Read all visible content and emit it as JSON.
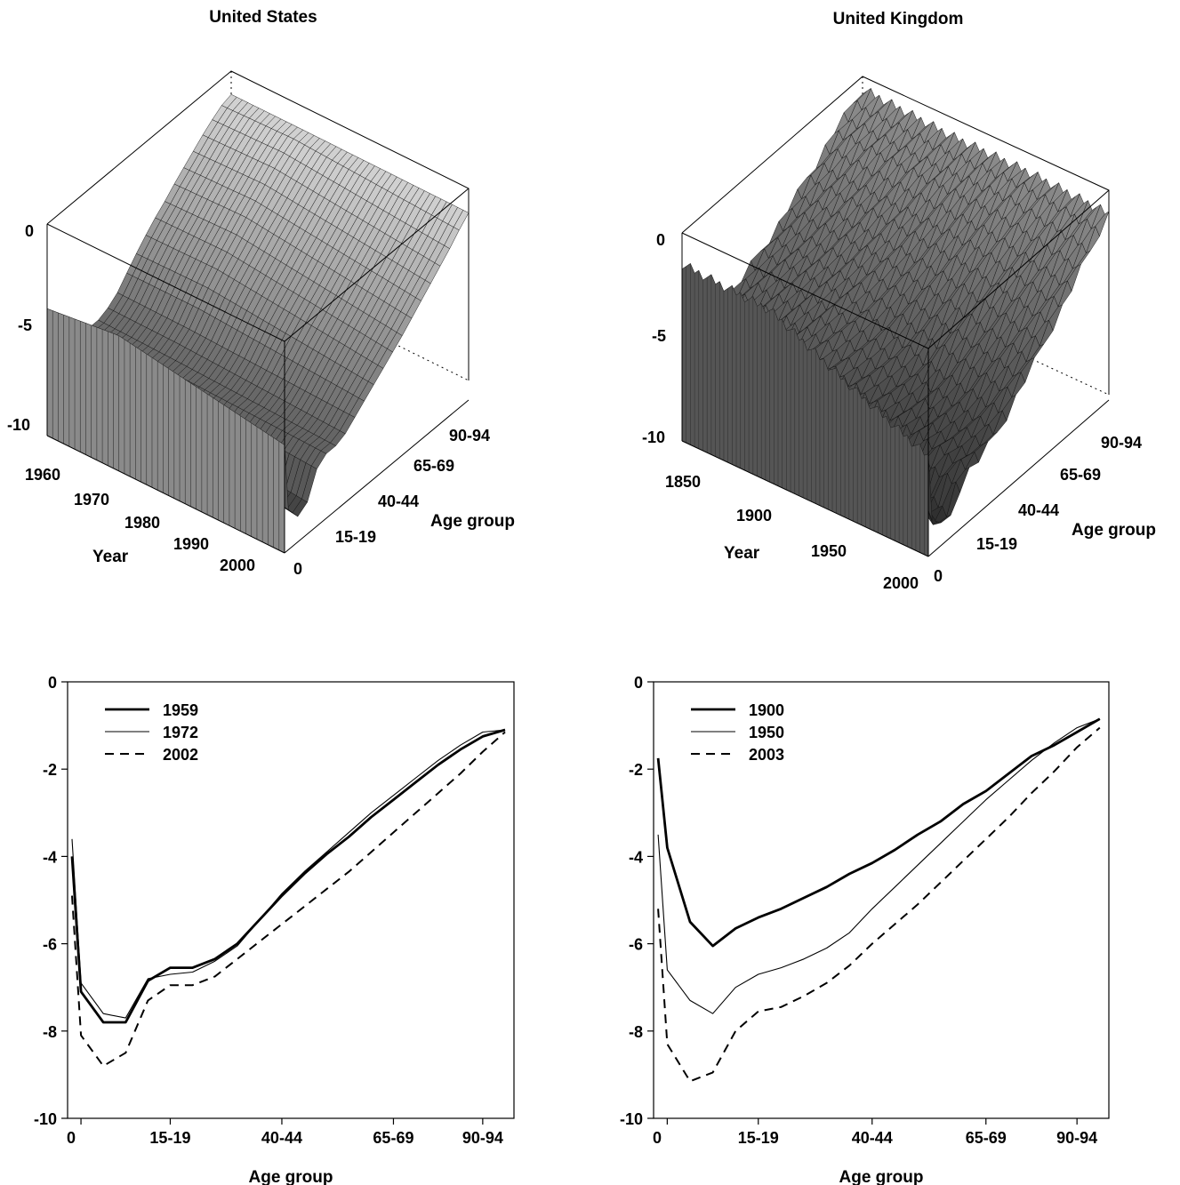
{
  "surface_panels": [
    {
      "title": "United States",
      "zticks": [
        "0",
        "-5",
        "-10"
      ],
      "year_ticks": [
        "1960",
        "1970",
        "1980",
        "1990",
        "2000"
      ],
      "year_label": "Year",
      "age_ticks": [
        "0",
        "15-19",
        "40-44",
        "65-69",
        "90-94"
      ],
      "age_label": "Age group"
    },
    {
      "title": "United Kingdom",
      "zticks": [
        "0",
        "-5",
        "-10"
      ],
      "year_ticks": [
        "1850",
        "1900",
        "1950",
        "2000"
      ],
      "year_label": "Year",
      "age_ticks": [
        "0",
        "15-19",
        "40-44",
        "65-69",
        "90-94"
      ],
      "age_label": "Age group"
    }
  ],
  "chart_data": [
    {
      "type": "surface",
      "title": "United States",
      "xlabel": "Age group",
      "ylabel": "Year",
      "zlim": [
        -10,
        0
      ],
      "year_range": [
        1959,
        2002
      ],
      "ages": [
        0,
        2,
        7,
        12,
        17,
        22,
        27,
        32,
        37,
        42,
        47,
        52,
        57,
        62,
        67,
        72,
        77,
        82,
        87,
        92,
        97
      ],
      "fill": "#909090"
    },
    {
      "type": "surface",
      "title": "United Kingdom",
      "xlabel": "Age group",
      "ylabel": "Year",
      "zlim": [
        -10,
        0
      ],
      "year_range": [
        1841,
        2003
      ],
      "ages": [
        0,
        2,
        7,
        12,
        17,
        22,
        27,
        32,
        37,
        42,
        47,
        52,
        57,
        62,
        67,
        72,
        77,
        82,
        87,
        92,
        97
      ],
      "fill": "#5a5a5a"
    },
    {
      "type": "line",
      "xlabel": "Age group",
      "ylabel": "",
      "ylim": [
        -10,
        0
      ],
      "yticks": [
        "0",
        "-2",
        "-4",
        "-6",
        "-8",
        "-10"
      ],
      "xticks": [
        "0",
        "15-19",
        "40-44",
        "65-69",
        "90-94"
      ],
      "x": [
        0,
        2,
        7,
        12,
        17,
        22,
        27,
        32,
        37,
        42,
        47,
        52,
        57,
        62,
        67,
        72,
        77,
        82,
        87,
        92,
        97
      ],
      "series": [
        {
          "name": "1959",
          "style": "thick",
          "values": [
            -4.0,
            -7.1,
            -7.8,
            -7.8,
            -6.85,
            -6.55,
            -6.55,
            -6.35,
            -6.0,
            -5.45,
            -4.9,
            -4.4,
            -3.95,
            -3.55,
            -3.1,
            -2.7,
            -2.3,
            -1.9,
            -1.55,
            -1.25,
            -1.1
          ]
        },
        {
          "name": "1972",
          "style": "thin",
          "values": [
            -3.6,
            -6.9,
            -7.6,
            -7.7,
            -6.8,
            -6.7,
            -6.65,
            -6.4,
            -6.05,
            -5.45,
            -4.85,
            -4.35,
            -3.9,
            -3.45,
            -3.0,
            -2.6,
            -2.2,
            -1.8,
            -1.45,
            -1.15,
            -1.1
          ]
        },
        {
          "name": "2002",
          "style": "dashed",
          "values": [
            -4.9,
            -8.1,
            -8.8,
            -8.5,
            -7.3,
            -6.95,
            -6.95,
            -6.75,
            -6.35,
            -5.95,
            -5.55,
            -5.15,
            -4.75,
            -4.35,
            -3.9,
            -3.45,
            -3.0,
            -2.55,
            -2.1,
            -1.6,
            -1.15
          ]
        }
      ]
    },
    {
      "type": "line",
      "xlabel": "Age group",
      "ylabel": "",
      "ylim": [
        -10,
        0
      ],
      "yticks": [
        "0",
        "-2",
        "-4",
        "-6",
        "-8",
        "-10"
      ],
      "xticks": [
        "0",
        "15-19",
        "40-44",
        "65-69",
        "90-94"
      ],
      "x": [
        0,
        2,
        7,
        12,
        17,
        22,
        27,
        32,
        37,
        42,
        47,
        52,
        57,
        62,
        67,
        72,
        77,
        82,
        87,
        92,
        97
      ],
      "series": [
        {
          "name": "1900",
          "style": "thick",
          "values": [
            -1.75,
            -3.8,
            -5.5,
            -6.05,
            -5.65,
            -5.4,
            -5.2,
            -4.95,
            -4.7,
            -4.4,
            -4.15,
            -3.85,
            -3.5,
            -3.2,
            -2.8,
            -2.5,
            -2.1,
            -1.7,
            -1.45,
            -1.15,
            -0.85
          ]
        },
        {
          "name": "1950",
          "style": "thin",
          "values": [
            -3.5,
            -6.6,
            -7.3,
            -7.6,
            -7.0,
            -6.7,
            -6.55,
            -6.35,
            -6.1,
            -5.75,
            -5.2,
            -4.7,
            -4.2,
            -3.7,
            -3.2,
            -2.7,
            -2.25,
            -1.8,
            -1.4,
            -1.05,
            -0.85
          ]
        },
        {
          "name": "2003",
          "style": "dashed",
          "values": [
            -5.2,
            -8.3,
            -9.15,
            -8.95,
            -8.0,
            -7.55,
            -7.45,
            -7.2,
            -6.9,
            -6.5,
            -6.0,
            -5.55,
            -5.1,
            -4.6,
            -4.1,
            -3.6,
            -3.1,
            -2.55,
            -2.05,
            -1.5,
            -1.05
          ]
        }
      ]
    }
  ]
}
